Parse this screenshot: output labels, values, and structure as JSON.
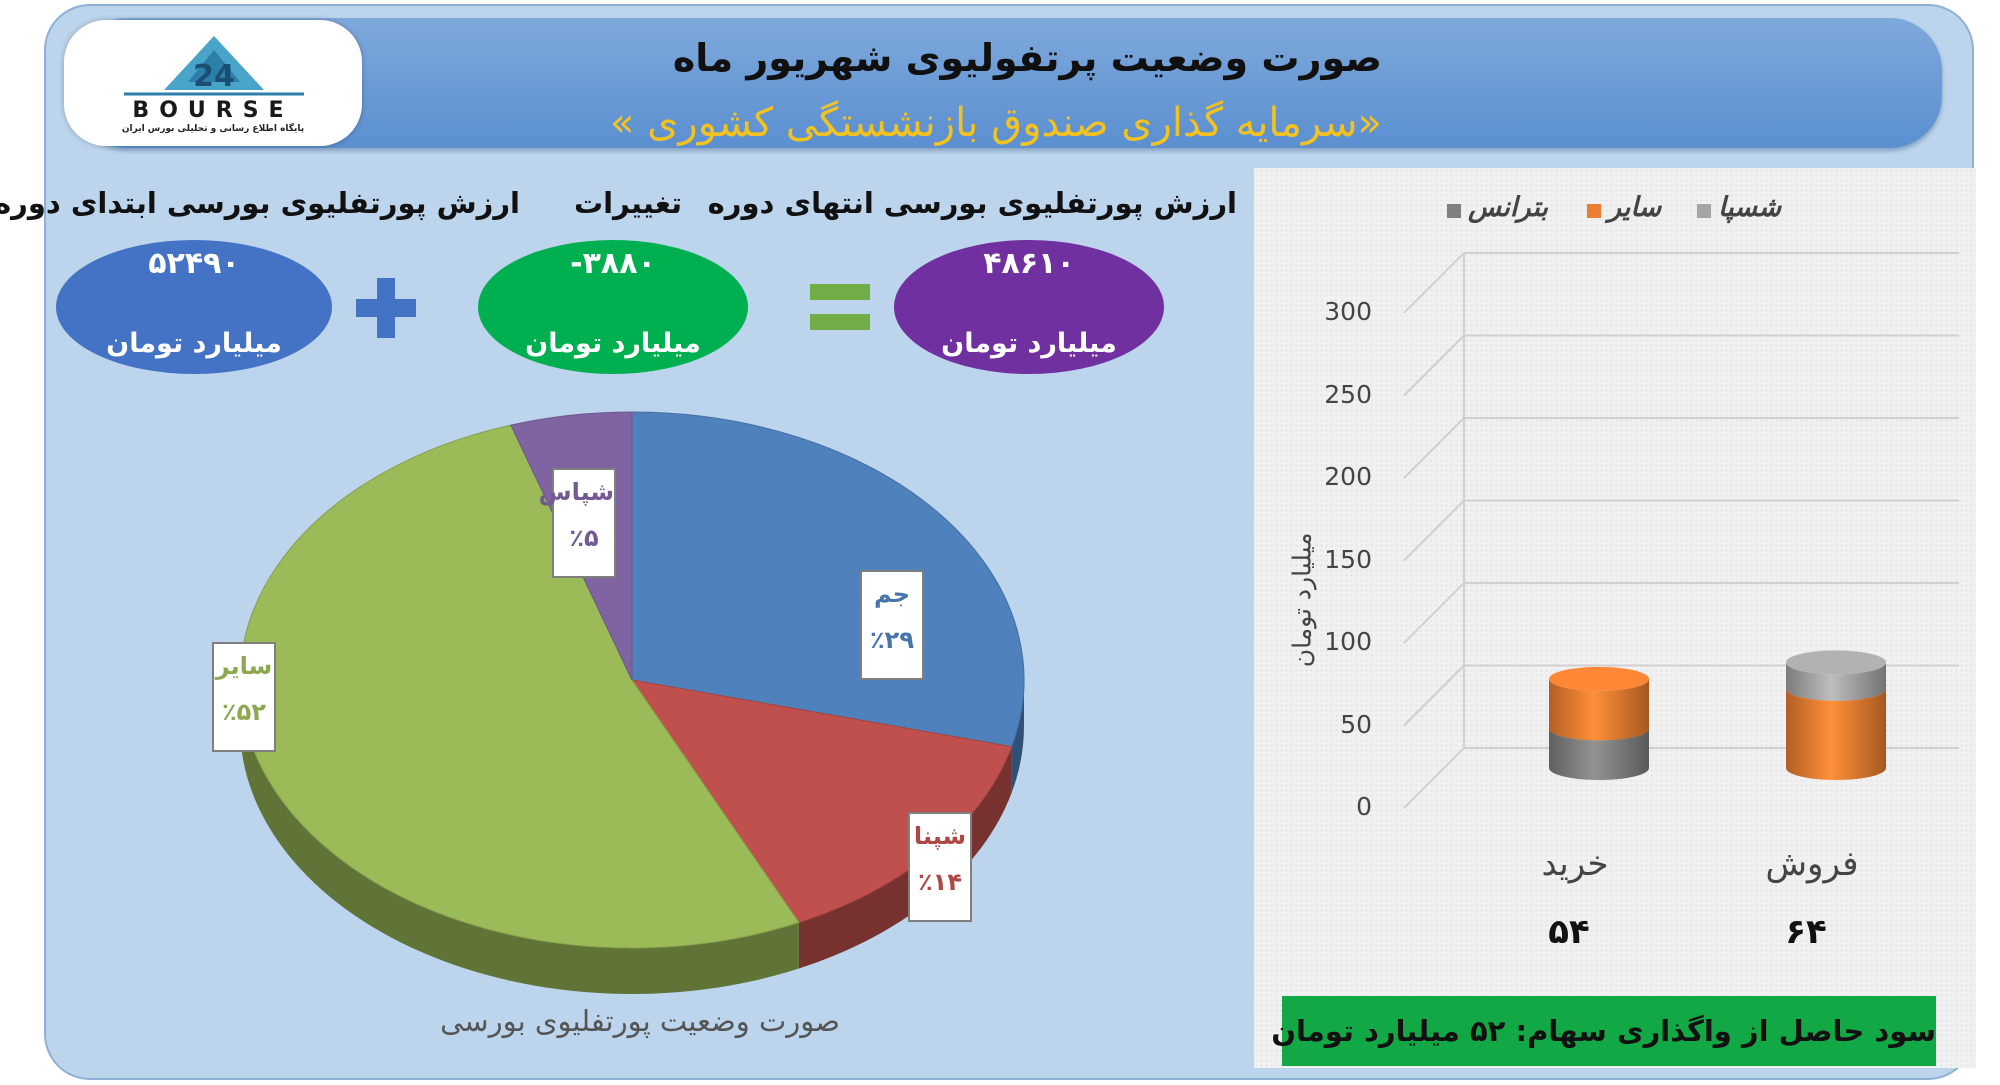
{
  "header": {
    "title": "صورت وضعیت پرتفولیوی شهریور ماه",
    "subtitle": "«سرمایه گذاری صندوق بازنشستگی کشوری »",
    "logo_text": "BOURSE",
    "logo_number": "24",
    "logo_subtext": "پایگاه اطلاع رسانی و تحلیلی بورس ایران"
  },
  "summary": {
    "start": {
      "label": "ارزش پورتفلیوی بورسی ابتدای دوره",
      "value": "۵۲۴۹۰",
      "unit": "میلیارد تومان",
      "color": "#4472c4"
    },
    "change": {
      "label": "تغییرات",
      "value": "-۳۸۸۰",
      "unit": "میلیارد تومان",
      "color": "#00b050"
    },
    "end": {
      "label": "ارزش پورتفلیوی بورسی انتهای دوره",
      "value": "۴۸۶۱۰",
      "unit": "میلیارد تومان",
      "color": "#7030a0"
    },
    "plus_color": "#4472c4",
    "equals_color": "#70ad47"
  },
  "chart_data": [
    {
      "type": "pie",
      "title": "صورت وضعیت پورتفلیوی بورسی",
      "slices": [
        {
          "name": "جم",
          "label": "٪۲۹",
          "value": 29,
          "color": "#4f81bd"
        },
        {
          "name": "شپنا",
          "label": "٪۱۴",
          "value": 14,
          "color": "#c0504d"
        },
        {
          "name": "سایر",
          "label": "٪۵۲",
          "value": 52,
          "color": "#9bbb59"
        },
        {
          "name": "شپاس",
          "label": "٪۵",
          "value": 5,
          "color": "#8064a2"
        }
      ]
    },
    {
      "type": "bar",
      "stacked": true,
      "ylabel": "میلیارد تومان",
      "ylim": [
        0,
        300
      ],
      "yticks": [
        "0",
        "50",
        "100",
        "150",
        "200",
        "250",
        "300"
      ],
      "categories": [
        "خرید",
        "فروش"
      ],
      "category_totals": [
        "۵۴",
        "۶۴"
      ],
      "legend": [
        "بترانس",
        "سایر",
        "شسپا"
      ],
      "legend_position": "top",
      "series": [
        {
          "name": "بترانس",
          "color": "#808080",
          "values": [
            24,
            0
          ]
        },
        {
          "name": "سایر",
          "color": "#ed7d31",
          "values": [
            30,
            48
          ]
        },
        {
          "name": "شسپا",
          "color": "#a5a5a5",
          "values": [
            0,
            16
          ]
        }
      ]
    }
  ],
  "footer": {
    "profit_text": "سود حاصل از واگذاری سهام: ۵۲ میلیارد تومان"
  }
}
